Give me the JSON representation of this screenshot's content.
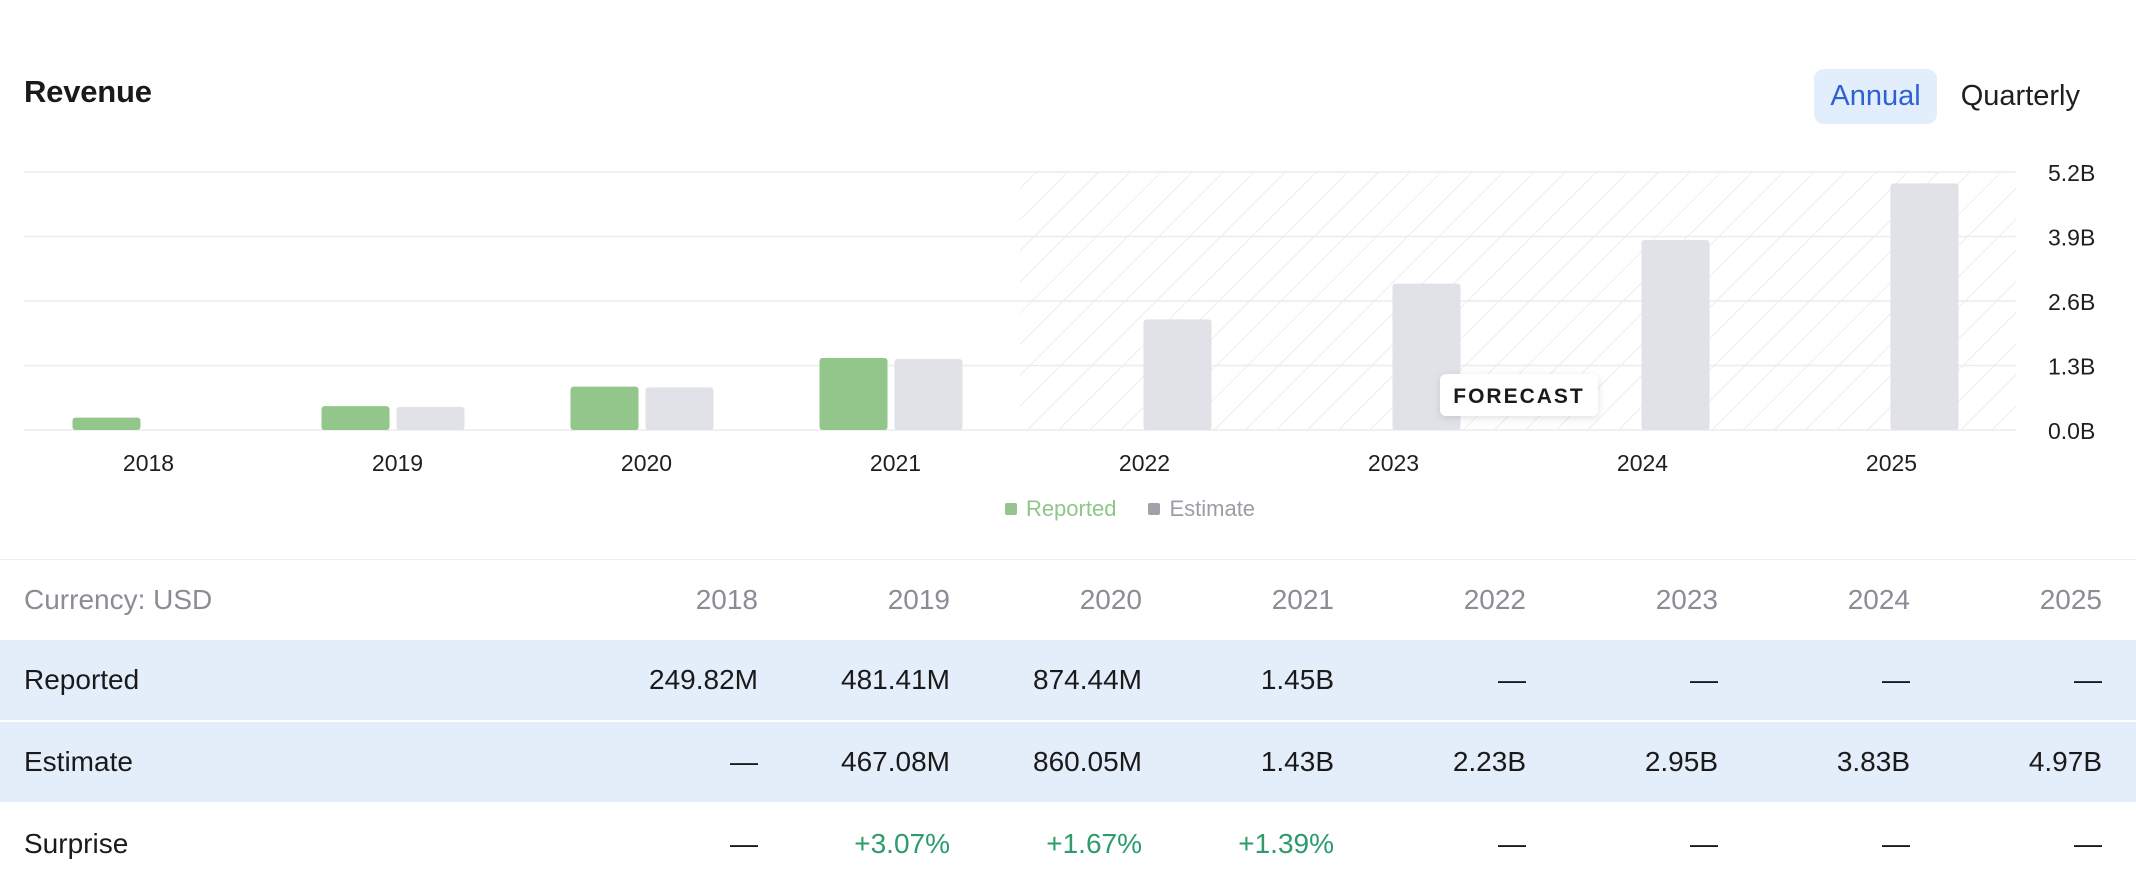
{
  "header": {
    "title": "Revenue"
  },
  "toggle": {
    "annual": "Annual",
    "quarterly": "Quarterly",
    "active": "Annual"
  },
  "colors": {
    "reported": "#93c68b",
    "estimate": "#e0e2e8",
    "accent": "#2f62d0",
    "shaded_row": "#e4eefa",
    "positive": "#2e9b6b"
  },
  "chart_data": {
    "type": "bar",
    "categories": [
      "2018",
      "2019",
      "2020",
      "2021",
      "2022",
      "2023",
      "2024",
      "2025"
    ],
    "series": [
      {
        "name": "Reported",
        "values": [
          0.24982,
          0.48141,
          0.87444,
          1.45,
          null,
          null,
          null,
          null
        ]
      },
      {
        "name": "Estimate",
        "values": [
          null,
          0.46708,
          0.86005,
          1.43,
          2.23,
          2.95,
          3.83,
          4.97
        ]
      }
    ],
    "unit": "B",
    "ylim": [
      0,
      5.2
    ],
    "y_ticks": [
      "5.2B",
      "3.9B",
      "2.6B",
      "1.3B",
      "0.0B"
    ],
    "y_tick_values": [
      5.2,
      3.9,
      2.6,
      1.3,
      0.0
    ],
    "forecast_label": "FORECAST",
    "forecast_start": "2022",
    "grid": true,
    "legend_position": "bottom-center"
  },
  "legend": {
    "reported": "Reported",
    "estimate": "Estimate"
  },
  "table": {
    "currency_label": "Currency: USD",
    "years": [
      "2018",
      "2019",
      "2020",
      "2021",
      "2022",
      "2023",
      "2024",
      "2025"
    ],
    "rows": [
      {
        "label": "Reported",
        "values": [
          "249.82M",
          "481.41M",
          "874.44M",
          "1.45B",
          "—",
          "—",
          "—",
          "—"
        ]
      },
      {
        "label": "Estimate",
        "values": [
          "—",
          "467.08M",
          "860.05M",
          "1.43B",
          "2.23B",
          "2.95B",
          "3.83B",
          "4.97B"
        ]
      },
      {
        "label": "Surprise",
        "values": [
          "—",
          "+3.07%",
          "+1.67%",
          "+1.39%",
          "—",
          "—",
          "—",
          "—"
        ]
      }
    ]
  }
}
